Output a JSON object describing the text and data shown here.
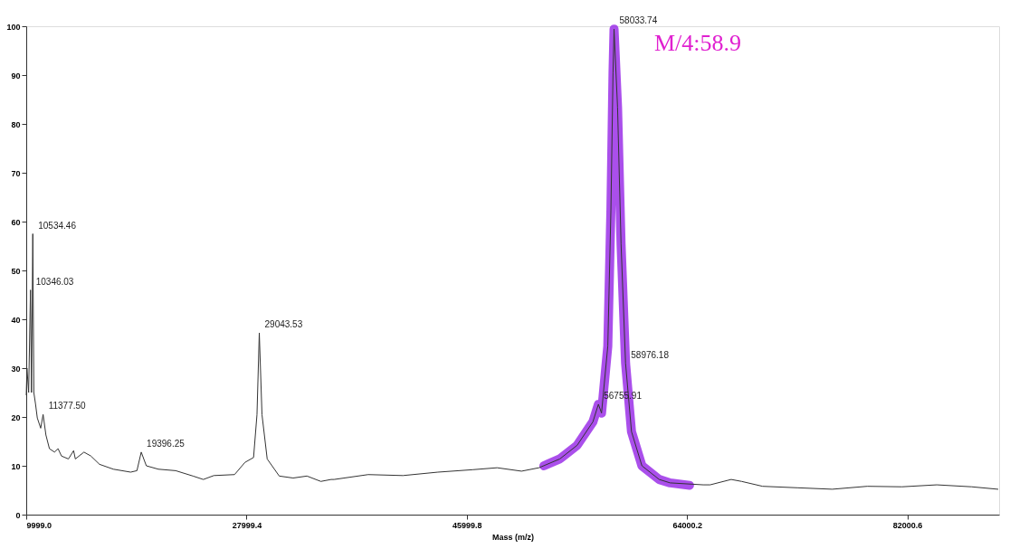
{
  "chart_data": {
    "type": "line",
    "xlabel": "Mass (m/z)",
    "xlim": [
      9999.0,
      89500
    ],
    "ylim": [
      0,
      100
    ],
    "xticks": [
      {
        "value": 9999.0,
        "label": "9999.0"
      },
      {
        "value": 27999.4,
        "label": "27999.4"
      },
      {
        "value": 45999.8,
        "label": "45999.8"
      },
      {
        "value": 64000.2,
        "label": "64000.2"
      },
      {
        "value": 82000.6,
        "label": "82000.6"
      }
    ],
    "yticks": [
      0,
      10,
      20,
      30,
      40,
      50,
      60,
      70,
      80,
      90,
      100
    ],
    "grid": false,
    "series": [
      {
        "color": "#333333",
        "x": [
          10000,
          10056,
          10196,
          10346.03,
          10430,
          10534.46,
          10620,
          10760,
          10902,
          11181,
          11377.5,
          11607,
          11894,
          12313,
          12600,
          12879,
          13445,
          13871,
          14011,
          14717,
          15282,
          15988,
          17121,
          18531,
          19045,
          19396.25,
          19812,
          20797,
          22209,
          23625,
          24472,
          25325,
          27021,
          27873,
          28576,
          28856,
          29043.53,
          29264,
          29690,
          30675,
          31808,
          32940,
          34072,
          34917,
          35157,
          37940,
          40786,
          43636,
          46479,
          48478,
          50472,
          51898,
          53600,
          55020,
          56306,
          56755.91,
          57011,
          57523,
          57778,
          57950,
          58033.74,
          58321,
          58607,
          58976.18,
          59460,
          60312,
          61723,
          62620,
          65325,
          65888,
          67607,
          68460,
          70172,
          73017,
          75869,
          78721,
          81565,
          84409,
          87261,
          89400
        ],
        "values": [
          24.5,
          30,
          25,
          46,
          25,
          57.5,
          25,
          22.6,
          19.8,
          17.7,
          20.5,
          16.3,
          13.5,
          12.8,
          13.5,
          12,
          11.4,
          13.1,
          11.4,
          12.8,
          12,
          10.3,
          9.3,
          8.7,
          9,
          12.8,
          10,
          9.3,
          9,
          7.9,
          7.2,
          8,
          8.2,
          10.7,
          11.7,
          20.5,
          37.2,
          20.5,
          11.4,
          7.9,
          7.5,
          7.9,
          6.8,
          7.2,
          7.2,
          8.2,
          8,
          8.7,
          9.2,
          9.6,
          8.9,
          9.6,
          11.4,
          14.2,
          19,
          22.6,
          20.8,
          34.5,
          62.4,
          90.4,
          99.4,
          83.4,
          55.4,
          31,
          17,
          10,
          7.2,
          6.5,
          6.1,
          6.1,
          7.2,
          6.8,
          5.8,
          5.5,
          5.2,
          5.8,
          5.7,
          6.1,
          5.7,
          5.2
        ]
      },
      {
        "color": "#9b30e8",
        "x": [
          52300,
          53600,
          55020,
          56306,
          56755.91,
          57011,
          57523,
          57778,
          57950,
          58033.74,
          58321,
          58607,
          58976.18,
          59460,
          60312,
          61723,
          62620,
          64200
        ],
        "values": [
          10,
          11.4,
          14.2,
          19,
          22.6,
          20.8,
          34.5,
          62.4,
          90.4,
          99.4,
          83.4,
          55.4,
          31,
          17,
          10,
          7.2,
          6.5,
          6
        ]
      }
    ],
    "annotations": [
      {
        "text": "10534.46",
        "x": 10534.46,
        "y": 57.5
      },
      {
        "text": "10346.03",
        "x": 10346.03,
        "y": 46
      },
      {
        "text": "11377.50",
        "x": 11377.5,
        "y": 20.5
      },
      {
        "text": "19396.25",
        "x": 19396.25,
        "y": 12.8
      },
      {
        "text": "29043.53",
        "x": 29043.53,
        "y": 37.2
      },
      {
        "text": "58033.74",
        "x": 58033.74,
        "y": 99.4
      },
      {
        "text": "56755.91",
        "x": 56755.91,
        "y": 22.6
      },
      {
        "text": "58976.18",
        "x": 58976.18,
        "y": 31
      },
      "M/4:58.9"
    ]
  }
}
